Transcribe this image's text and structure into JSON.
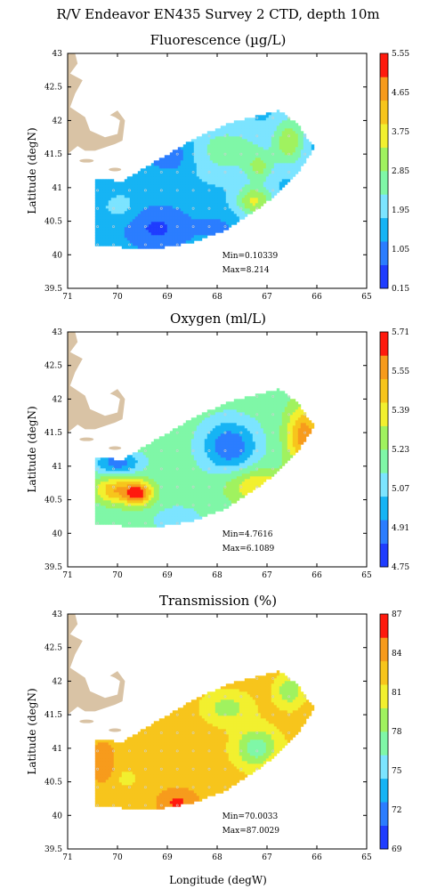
{
  "figure_title": "R/V Endeavor EN435 Survey 2 CTD, depth 10m",
  "xlabel": "Longitude (degW)",
  "ylabel": "Latitude (degN)",
  "x_ticks": [
    "71",
    "70",
    "69",
    "68",
    "67",
    "66",
    "65"
  ],
  "y_ticks": [
    "43",
    "42.5",
    "42",
    "41.5",
    "41",
    "40.5",
    "40",
    "39.5"
  ],
  "colors": {
    "land": "#d9c3a5",
    "palette": [
      "#1f3dff",
      "#2b7dff",
      "#16b4f4",
      "#7ce4ff",
      "#7ff7a7",
      "#a0f25f",
      "#f2f02f",
      "#f7c51c",
      "#f79b1c",
      "#ff1a0e"
    ]
  },
  "chart_data": [
    {
      "type": "heatmap",
      "title": "Fluorescence (µg/L)",
      "xlabel": "Longitude (degW)",
      "ylabel": "Latitude (degN)",
      "xlim": [
        71,
        65
      ],
      "ylim": [
        39.5,
        43
      ],
      "colorbar_ticks": [
        "5.55",
        "4.65",
        "3.75",
        "2.85",
        "1.95",
        "1.05",
        "0.15"
      ],
      "colorbar_range": [
        0.15,
        5.55
      ],
      "min_label": "Min=0.10339",
      "max_label": "Max=8.214",
      "min": 0.10339,
      "max": 8.214
    },
    {
      "type": "heatmap",
      "title": "Oxygen (ml/L)",
      "xlabel": "Longitude (degW)",
      "ylabel": "Latitude (degN)",
      "xlim": [
        71,
        65
      ],
      "ylim": [
        39.5,
        43
      ],
      "colorbar_ticks": [
        "5.71",
        "5.55",
        "5.39",
        "5.23",
        "5.07",
        "4.91",
        "4.75"
      ],
      "colorbar_range": [
        4.75,
        5.71
      ],
      "min_label": "Min=4.7616",
      "max_label": "Max=6.1089",
      "min": 4.7616,
      "max": 6.1089
    },
    {
      "type": "heatmap",
      "title": "Transmission (%)",
      "xlabel": "Longitude (degW)",
      "ylabel": "Latitude (degN)",
      "xlim": [
        71,
        65
      ],
      "ylim": [
        39.5,
        43
      ],
      "colorbar_ticks": [
        "87",
        "84",
        "81",
        "78",
        "75",
        "72",
        "69"
      ],
      "colorbar_range": [
        69,
        87
      ],
      "min_label": "Min=70.0033",
      "max_label": "Max=87.0029",
      "min": 70.0033,
      "max": 87.0029
    }
  ]
}
